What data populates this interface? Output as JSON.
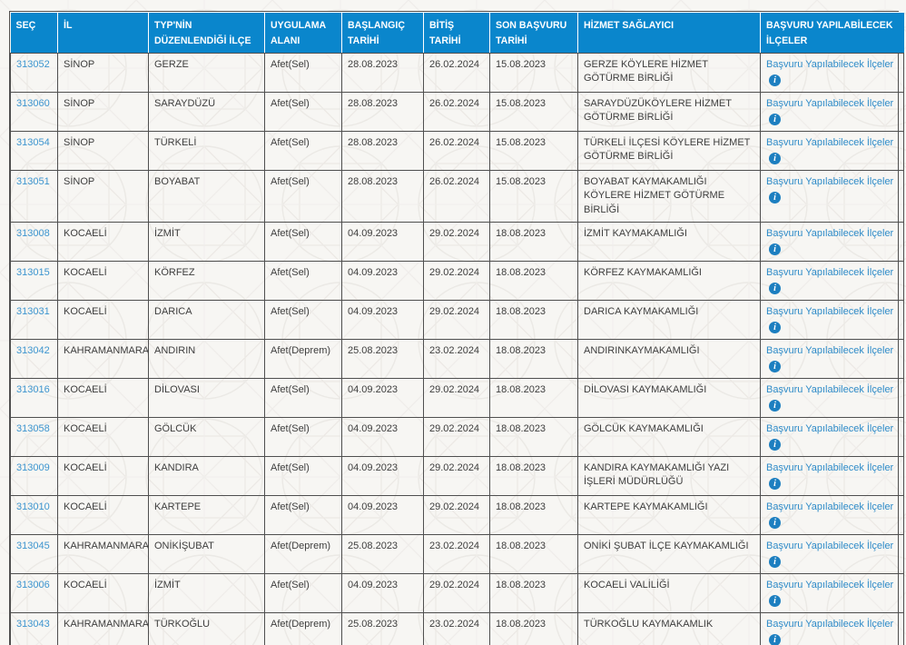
{
  "colors": {
    "header_background": "#0a86cc",
    "header_text": "#ffffff",
    "link_blue": "#2e8bc8",
    "id_link_blue": "#3d95cf",
    "cell_border": "#4f4f4f",
    "body_text": "#3d3d3d",
    "page_background": "#f7f6f3",
    "info_icon_background": "#1d7fc0"
  },
  "table": {
    "columns": [
      {
        "key": "id",
        "label": "SEÇ"
      },
      {
        "key": "il",
        "label": "İL"
      },
      {
        "key": "ilce",
        "label": "TYP'NİN DÜZENLENDİĞİ İLÇE"
      },
      {
        "key": "alan",
        "label": "UYGULAMA ALANI"
      },
      {
        "key": "baslangic",
        "label": "BAŞLANGIÇ TARİHİ"
      },
      {
        "key": "bitis",
        "label": "BİTİŞ TARİHİ"
      },
      {
        "key": "son_basvuru",
        "label": "SON BAŞVURU TARİHİ"
      },
      {
        "key": "saglayici",
        "label": "HİZMET SAĞLAYICI"
      },
      {
        "key": "basvuru",
        "label": "BAŞVURU YAPILABİLECEK İLÇELER"
      }
    ],
    "basvuru_link_label": "Başvuru Yapılabilecek İlçeler",
    "info_icon_glyph": "i",
    "rows": [
      {
        "id": "313052",
        "il": "SİNOP",
        "ilce": "GERZE",
        "alan": "Afet(Sel)",
        "baslangic": "28.08.2023",
        "bitis": "26.02.2024",
        "son_basvuru": "15.08.2023",
        "saglayici": "GERZE KÖYLERE HİZMET GÖTÜRME BİRLİĞİ"
      },
      {
        "id": "313060",
        "il": "SİNOP",
        "ilce": "SARAYDÜZÜ",
        "alan": "Afet(Sel)",
        "baslangic": "28.08.2023",
        "bitis": "26.02.2024",
        "son_basvuru": "15.08.2023",
        "saglayici": "SARAYDÜZÜKÖYLERE HİZMET GÖTÜRME BİRLİĞİ"
      },
      {
        "id": "313054",
        "il": "SİNOP",
        "ilce": "TÜRKELİ",
        "alan": "Afet(Sel)",
        "baslangic": "28.08.2023",
        "bitis": "26.02.2024",
        "son_basvuru": "15.08.2023",
        "saglayici": "TÜRKELİ İLÇESİ KÖYLERE HİZMET GÖTÜRME BİRLİĞİ"
      },
      {
        "id": "313051",
        "il": "SİNOP",
        "ilce": "BOYABAT",
        "alan": "Afet(Sel)",
        "baslangic": "28.08.2023",
        "bitis": "26.02.2024",
        "son_basvuru": "15.08.2023",
        "saglayici": "BOYABAT KAYMAKAMLIĞI KÖYLERE HİZMET GÖTÜRME BİRLİĞİ"
      },
      {
        "id": "313008",
        "il": "KOCAELİ",
        "ilce": "İZMİT",
        "alan": "Afet(Sel)",
        "baslangic": "04.09.2023",
        "bitis": "29.02.2024",
        "son_basvuru": "18.08.2023",
        "saglayici": "İZMİT KAYMAKAMLIĞI"
      },
      {
        "id": "313015",
        "il": "KOCAELİ",
        "ilce": "KÖRFEZ",
        "alan": "Afet(Sel)",
        "baslangic": "04.09.2023",
        "bitis": "29.02.2024",
        "son_basvuru": "18.08.2023",
        "saglayici": "KÖRFEZ KAYMAKAMLIĞI"
      },
      {
        "id": "313031",
        "il": "KOCAELİ",
        "ilce": "DARICA",
        "alan": "Afet(Sel)",
        "baslangic": "04.09.2023",
        "bitis": "29.02.2024",
        "son_basvuru": "18.08.2023",
        "saglayici": "DARICA KAYMAKAMLIĞI"
      },
      {
        "id": "313042",
        "il": "KAHRAMANMARAŞ",
        "ilce": "ANDIRIN",
        "alan": "Afet(Deprem)",
        "baslangic": "25.08.2023",
        "bitis": "23.02.2024",
        "son_basvuru": "18.08.2023",
        "saglayici": "ANDIRINKAYMAKAMLIĞI"
      },
      {
        "id": "313016",
        "il": "KOCAELİ",
        "ilce": "DİLOVASI",
        "alan": "Afet(Sel)",
        "baslangic": "04.09.2023",
        "bitis": "29.02.2024",
        "son_basvuru": "18.08.2023",
        "saglayici": "DİLOVASI KAYMAKAMLIĞI"
      },
      {
        "id": "313058",
        "il": "KOCAELİ",
        "ilce": "GÖLCÜK",
        "alan": "Afet(Sel)",
        "baslangic": "04.09.2023",
        "bitis": "29.02.2024",
        "son_basvuru": "18.08.2023",
        "saglayici": "GÖLCÜK KAYMAKAMLIĞI"
      },
      {
        "id": "313009",
        "il": "KOCAELİ",
        "ilce": "KANDIRA",
        "alan": "Afet(Sel)",
        "baslangic": "04.09.2023",
        "bitis": "29.02.2024",
        "son_basvuru": "18.08.2023",
        "saglayici": "KANDIRA KAYMAKAMLIĞI YAZI İŞLERİ MÜDÜRLÜĞÜ"
      },
      {
        "id": "313010",
        "il": "KOCAELİ",
        "ilce": "KARTEPE",
        "alan": "Afet(Sel)",
        "baslangic": "04.09.2023",
        "bitis": "29.02.2024",
        "son_basvuru": "18.08.2023",
        "saglayici": "KARTEPE KAYMAKAMLIĞI"
      },
      {
        "id": "313045",
        "il": "KAHRAMANMARAŞ",
        "ilce": "ONİKİŞUBAT",
        "alan": "Afet(Deprem)",
        "baslangic": "25.08.2023",
        "bitis": "23.02.2024",
        "son_basvuru": "18.08.2023",
        "saglayici": "ONİKİ ŞUBAT İLÇE KAYMAKAMLIĞI"
      },
      {
        "id": "313006",
        "il": "KOCAELİ",
        "ilce": "İZMİT",
        "alan": "Afet(Sel)",
        "baslangic": "04.09.2023",
        "bitis": "29.02.2024",
        "son_basvuru": "18.08.2023",
        "saglayici": "KOCAELİ VALİLİĞİ"
      },
      {
        "id": "313043",
        "il": "KAHRAMANMARAŞ",
        "ilce": "TÜRKOĞLU",
        "alan": "Afet(Deprem)",
        "baslangic": "25.08.2023",
        "bitis": "23.02.2024",
        "son_basvuru": "18.08.2023",
        "saglayici": "TÜRKOĞLU KAYMAKAMLIK"
      }
    ]
  }
}
